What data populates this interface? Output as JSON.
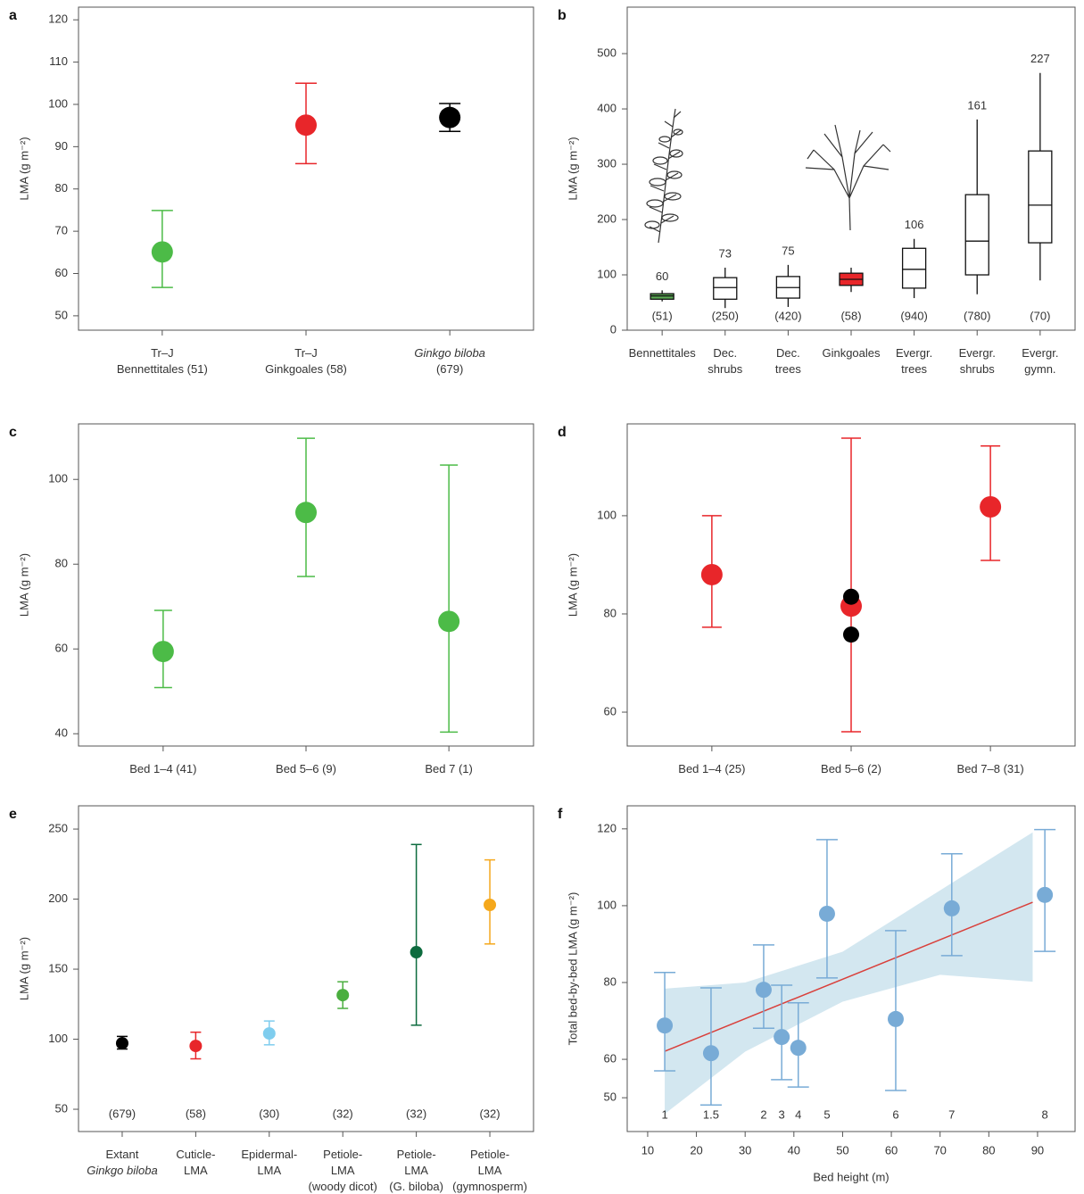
{
  "chart_data": [
    {
      "type": "errorbar",
      "label": "a",
      "ylabel": "LMA (g m⁻²)",
      "categories": [
        "Tr–J\nBennettitales (51)",
        "Tr–J\nGinkgoales (58)",
        "Ginkgo biloba\n(679)"
      ],
      "series": [
        {
          "colors": [
            "#4cbb47",
            "#e8262a",
            "#000000"
          ],
          "values": [
            65.1,
            95.1,
            96.9
          ],
          "low": [
            56.7,
            86.0,
            93.6
          ],
          "high": [
            74.9,
            105.0,
            100.2
          ]
        }
      ],
      "ylim": [
        46.6,
        123
      ],
      "yticks": [
        50,
        60,
        70,
        80,
        90,
        100,
        110,
        120
      ]
    },
    {
      "type": "box",
      "label": "b",
      "ylabel": "LMA (g m⁻²)",
      "categories": [
        "Bennettitales",
        "Dec.\nshrubs",
        "Dec.\ntrees",
        "Ginkgoales",
        "Evergr.\ntrees",
        "Evergr.\nshrubs",
        "Evergr.\ngymn."
      ],
      "counts": [
        "(51)",
        "(250)",
        "(420)",
        "(58)",
        "(940)",
        "(780)",
        "(70)"
      ],
      "means": [
        60,
        73,
        75,
        null,
        106,
        161,
        227
      ],
      "whisker_low": [
        52,
        40,
        42,
        69,
        58,
        65,
        90
      ],
      "q1": [
        56,
        56,
        58,
        81,
        76,
        100,
        158
      ],
      "median": [
        62,
        77,
        77,
        92,
        110,
        161,
        226
      ],
      "q3": [
        66,
        95,
        97,
        103,
        148,
        245,
        324
      ],
      "whisker_high": [
        72,
        113,
        118,
        113,
        165,
        381,
        465
      ],
      "colors": [
        "#5aa853",
        "#ffffff",
        "#ffffff",
        "#e8262a",
        "#ffffff",
        "#ffffff",
        "#ffffff"
      ],
      "ylim": [
        0,
        584
      ],
      "yticks": [
        0,
        100,
        200,
        300,
        400,
        500
      ]
    },
    {
      "type": "errorbar",
      "label": "c",
      "ylabel": "LMA (g m⁻²)",
      "categories": [
        "Bed 1–4 (41)",
        "Bed 5–6 (9)",
        "Bed 7 (1)"
      ],
      "series": [
        {
          "color": "#4cbb47",
          "values": [
            59.4,
            92.2,
            66.5
          ],
          "low": [
            50.9,
            77.1,
            40.4
          ],
          "high": [
            69.1,
            109.7,
            103.4
          ]
        }
      ],
      "ylim": [
        37.1,
        113.1
      ],
      "yticks": [
        40,
        60,
        80,
        100
      ]
    },
    {
      "type": "errorbar",
      "label": "d",
      "ylabel": "LMA (g m⁻²)",
      "categories": [
        "Bed 1–4 (25)",
        "Bed 5–6 (2)",
        "Bed 7–8 (31)"
      ],
      "series": [
        {
          "color": "#e8262a",
          "values": [
            88,
            81.6,
            101.8
          ],
          "low": [
            77.3,
            56,
            90.9
          ],
          "high": [
            100,
            115.8,
            114.2
          ]
        },
        {
          "color": "#000000",
          "values": [
            null,
            83.5,
            null
          ]
        },
        {
          "color": "#000000",
          "values": [
            null,
            75.8,
            null
          ]
        }
      ],
      "ylim": [
        53.1,
        118.7
      ],
      "yticks": [
        60,
        80,
        100
      ]
    },
    {
      "type": "errorbar",
      "label": "e",
      "ylabel": "LMA (g m⁻²)",
      "categories": [
        "Extant\nGinkgo biloba",
        "Cuticle-\nLMA",
        "Epidermal-\nLMA",
        "Petiole-\nLMA\n(woody dicot)",
        "Petiole-\nLMA\n(G. biloba)",
        "Petiole-\nLMA\n(gymnosperm)"
      ],
      "counts": [
        "(679)",
        "(58)",
        "(30)",
        "(32)",
        "(32)",
        "(32)"
      ],
      "series": [
        {
          "colors": [
            "#000000",
            "#e8262a",
            "#7fcdee",
            "#4aae3f",
            "#0d6b3e",
            "#f5a81c"
          ],
          "values": [
            97.1,
            95.2,
            104.1,
            131.5,
            162.1,
            195.9
          ],
          "low": [
            93,
            86,
            96,
            122,
            110,
            168
          ],
          "high": [
            102,
            105,
            113,
            141,
            239,
            228
          ]
        }
      ],
      "ylim": [
        34.1,
        266.6
      ],
      "yticks": [
        50,
        100,
        150,
        200,
        250
      ]
    },
    {
      "type": "scatter",
      "label": "f",
      "xlabel": "Bed height (m)",
      "ylabel": "Total bed-by-bed LMA (g m⁻²)",
      "x": [
        13.5,
        23.0,
        33.8,
        37.5,
        40.9,
        46.8,
        60.9,
        72.4,
        91.5
      ],
      "values": [
        68.8,
        61.6,
        78.1,
        65.8,
        63.0,
        97.9,
        70.5,
        99.3,
        102.8
      ],
      "low": [
        57.0,
        48.1,
        68.1,
        54.7,
        52.8,
        81.2,
        51.9,
        87.0,
        88.1
      ],
      "high": [
        82.6,
        78.6,
        89.8,
        79.3,
        74.7,
        117.2,
        93.5,
        113.5,
        119.8
      ],
      "point_labels": [
        "1",
        "1.5",
        "2",
        "3",
        "4",
        "5",
        "6",
        "7",
        "8"
      ],
      "color": "#78abd6",
      "fit": {
        "x": [
          13.5,
          89
        ],
        "y": [
          62.1,
          100.9
        ],
        "color": "#d9403b"
      },
      "band": {
        "x": [
          13.5,
          30,
          50,
          70,
          89
        ],
        "upper": [
          78.4,
          80,
          88,
          104,
          119.1
        ],
        "lower": [
          45.8,
          62,
          75,
          82,
          80.2
        ],
        "color": "#d3e7f0"
      },
      "xlim": [
        5.8,
        97.7
      ],
      "xticks": [
        10,
        20,
        30,
        40,
        50,
        60,
        70,
        80,
        90
      ],
      "ylim": [
        41.2,
        126
      ],
      "yticks": [
        50,
        60,
        80,
        100,
        120
      ]
    }
  ]
}
